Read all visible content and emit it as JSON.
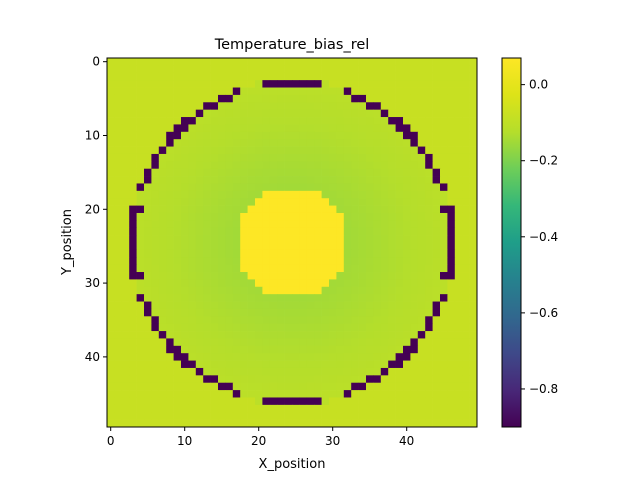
{
  "chart_data": {
    "type": "heatmap",
    "title": "Temperature_bias_rel",
    "xlabel": "X_position",
    "ylabel": "Y_position",
    "xlim": [
      -0.5,
      49.5
    ],
    "ylim": [
      49.5,
      -0.5
    ],
    "x_ticks": [
      0,
      10,
      20,
      30,
      40
    ],
    "y_ticks": [
      0,
      10,
      20,
      30,
      40
    ],
    "grid_size": [
      50,
      50
    ],
    "center": [
      25,
      25
    ],
    "colormap": "viridis",
    "colorbar": {
      "vmin": -0.9,
      "vmax": 0.07,
      "ticks": [
        0.0,
        -0.2,
        -0.4,
        -0.6,
        -0.8
      ],
      "tick_labels": [
        "0.0",
        "−0.2",
        "−0.4",
        "−0.6",
        "−0.8"
      ]
    },
    "regions": {
      "background_value": -0.08,
      "hot_core": {
        "radius": 7.5,
        "value": 0.07
      },
      "field": {
        "inner_radius": 7.5,
        "outer_radius": 21.5,
        "value_inner": -0.15,
        "value_outer": -0.11
      },
      "ring": {
        "radius": 21.5,
        "value": -0.9,
        "band": 0.55,
        "gap_angles_deg": [
          [
            15,
            18
          ],
          [
            72,
            80
          ],
          [
            100,
            108
          ],
          [
            162,
            165
          ],
          [
            195,
            198
          ],
          [
            252,
            260
          ],
          [
            280,
            288
          ],
          [
            342,
            345
          ]
        ]
      }
    },
    "grid": false,
    "legend": "none"
  }
}
